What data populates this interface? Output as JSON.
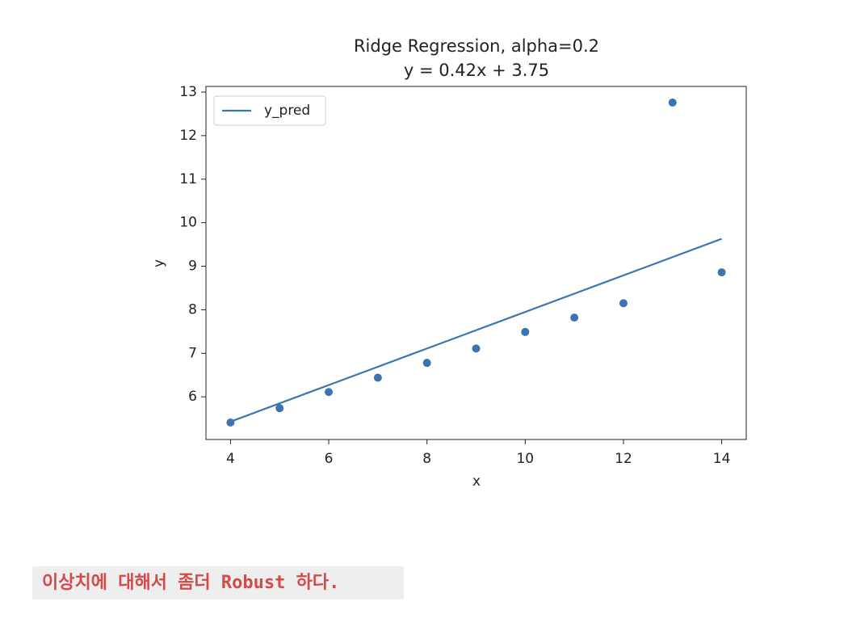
{
  "chart_data": {
    "type": "scatter",
    "title": "Ridge Regression, alpha=0.2",
    "subtitle": "y = 0.42x + 3.75",
    "x_label": "x",
    "y_label": "y",
    "x": [
      4,
      5,
      6,
      7,
      8,
      9,
      10,
      11,
      12,
      13,
      14
    ],
    "series": [
      {
        "type": "line",
        "name": "y_pred",
        "color": "#3b75af",
        "values": [
          5.43,
          5.85,
          6.27,
          6.69,
          7.11,
          7.53,
          7.95,
          8.37,
          8.79,
          9.21,
          9.63
        ]
      },
      {
        "type": "scatter",
        "color": "#3b75af",
        "values": [
          5.41,
          5.74,
          6.11,
          6.44,
          6.78,
          7.11,
          7.49,
          7.82,
          8.15,
          12.76,
          8.86
        ]
      }
    ],
    "xlim": [
      3.5,
      14.5
    ],
    "xticks": [
      4,
      6,
      8,
      10,
      12,
      14
    ],
    "ylim": [
      5.02,
      13.13
    ],
    "yticks": [
      6,
      7,
      8,
      9,
      10,
      11,
      12,
      13
    ],
    "grid": false,
    "legend": "upper left"
  },
  "caption": "이상치에 대해서 좀더 Robust 하다."
}
